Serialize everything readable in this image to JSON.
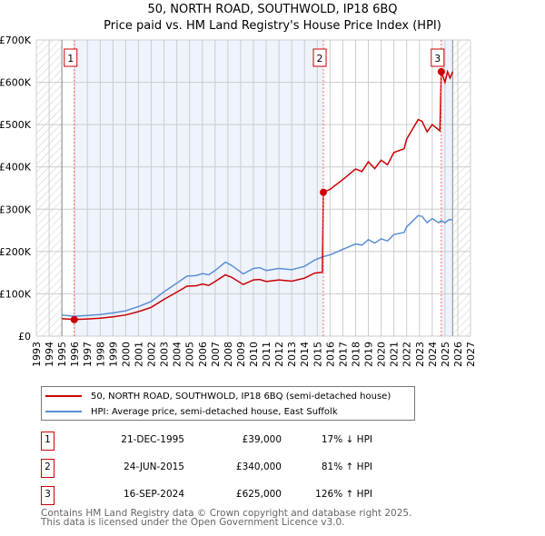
{
  "title": "50, NORTH ROAD, SOUTHWOLD, IP18 6BQ",
  "subtitle": "Price paid vs. HM Land Registry's House Price Index (HPI)",
  "chart_data": {
    "type": "line",
    "title": "50, NORTH ROAD, SOUTHWOLD, IP18 6BQ",
    "subtitle": "Price paid vs. HM Land Registry's House Price Index (HPI)",
    "xlim": [
      1993,
      2027
    ],
    "ylim": [
      0,
      700000
    ],
    "y_ticks": [
      0,
      100000,
      200000,
      300000,
      400000,
      500000,
      600000,
      700000
    ],
    "y_tick_labels": [
      "£0",
      "£100K",
      "£200K",
      "£300K",
      "£400K",
      "£500K",
      "£600K",
      "£700K"
    ],
    "x_ticks": [
      "1993",
      "1994",
      "1995",
      "1996",
      "1997",
      "1998",
      "1999",
      "2000",
      "2001",
      "2002",
      "2003",
      "2004",
      "2005",
      "2006",
      "2007",
      "2008",
      "2009",
      "2010",
      "2011",
      "2012",
      "2013",
      "2014",
      "2015",
      "2016",
      "2017",
      "2018",
      "2019",
      "2020",
      "2021",
      "2022",
      "2023",
      "2024",
      "2025",
      "2026",
      "2027"
    ],
    "data_range": [
      1995,
      2025.6
    ],
    "grid": true,
    "colors": {
      "property": "#cc0000",
      "hpi": "#5b8fd4",
      "shade": "#eef3fc"
    },
    "series": [
      {
        "name": "50, NORTH ROAD, SOUTHWOLD, IP18 6BQ (semi-detached house)",
        "color": "#cc0000",
        "points": [
          [
            1995,
            41500
          ],
          [
            1995.97,
            39000
          ],
          [
            1997,
            40500
          ],
          [
            1998,
            42500
          ],
          [
            1999,
            45500
          ],
          [
            2000,
            50000
          ],
          [
            2001,
            58000
          ],
          [
            2002,
            68000
          ],
          [
            2003,
            87000
          ],
          [
            2004,
            104000
          ],
          [
            2004.8,
            118000
          ],
          [
            2005.5,
            119000
          ],
          [
            2006,
            123000
          ],
          [
            2006.5,
            120000
          ],
          [
            2007,
            129000
          ],
          [
            2007.8,
            145000
          ],
          [
            2008.3,
            139000
          ],
          [
            2009.2,
            122000
          ],
          [
            2010,
            133000
          ],
          [
            2010.5,
            134000
          ],
          [
            2011,
            129000
          ],
          [
            2012,
            133000
          ],
          [
            2013,
            130000
          ],
          [
            2014,
            137000
          ],
          [
            2014.8,
            149000
          ],
          [
            2015.4,
            151000
          ],
          [
            2015.48,
            340000
          ],
          [
            2016,
            347000
          ],
          [
            2017,
            370000
          ],
          [
            2018,
            395000
          ],
          [
            2018.5,
            389000
          ],
          [
            2019,
            412000
          ],
          [
            2019.5,
            396000
          ],
          [
            2020,
            416000
          ],
          [
            2020.5,
            405000
          ],
          [
            2021,
            434000
          ],
          [
            2021.8,
            443000
          ],
          [
            2022,
            466000
          ],
          [
            2022.9,
            512000
          ],
          [
            2023.2,
            508000
          ],
          [
            2023.6,
            483000
          ],
          [
            2024,
            500000
          ],
          [
            2024.6,
            485000
          ],
          [
            2024.71,
            625000
          ],
          [
            2025,
            600000
          ],
          [
            2025.2,
            625000
          ],
          [
            2025.4,
            610000
          ],
          [
            2025.6,
            625000
          ]
        ]
      },
      {
        "name": "HPI: Average price, semi-detached house, East Suffolk",
        "color": "#5b8fd4",
        "points": [
          [
            1995,
            50000
          ],
          [
            1996,
            47000
          ],
          [
            1997,
            49000
          ],
          [
            1998,
            51000
          ],
          [
            1999,
            55000
          ],
          [
            2000,
            60000
          ],
          [
            2001,
            70000
          ],
          [
            2002,
            82000
          ],
          [
            2003,
            105000
          ],
          [
            2004,
            125000
          ],
          [
            2004.8,
            142000
          ],
          [
            2005.5,
            143000
          ],
          [
            2006,
            148000
          ],
          [
            2006.5,
            145000
          ],
          [
            2007,
            155000
          ],
          [
            2007.8,
            175000
          ],
          [
            2008.3,
            167000
          ],
          [
            2009.2,
            147000
          ],
          [
            2010,
            160000
          ],
          [
            2010.5,
            162000
          ],
          [
            2011,
            155000
          ],
          [
            2012,
            160000
          ],
          [
            2013,
            157000
          ],
          [
            2014,
            165000
          ],
          [
            2014.8,
            180000
          ],
          [
            2015.5,
            188000
          ],
          [
            2016,
            192000
          ],
          [
            2017,
            205000
          ],
          [
            2018,
            218000
          ],
          [
            2018.5,
            215000
          ],
          [
            2019,
            228000
          ],
          [
            2019.5,
            220000
          ],
          [
            2020,
            230000
          ],
          [
            2020.5,
            225000
          ],
          [
            2021,
            240000
          ],
          [
            2021.8,
            245000
          ],
          [
            2022,
            258000
          ],
          [
            2022.9,
            285000
          ],
          [
            2023.2,
            283000
          ],
          [
            2023.6,
            268000
          ],
          [
            2024,
            278000
          ],
          [
            2024.5,
            268000
          ],
          [
            2024.7,
            273000
          ],
          [
            2025,
            268000
          ],
          [
            2025.3,
            275000
          ],
          [
            2025.6,
            275000
          ]
        ]
      }
    ],
    "sales": [
      {
        "label": "1",
        "year": 1995.97,
        "price": 39000
      },
      {
        "label": "2",
        "year": 2015.48,
        "price": 340000
      },
      {
        "label": "3",
        "year": 2024.71,
        "price": 625000
      }
    ]
  },
  "legend": [
    {
      "label": "50, NORTH ROAD, SOUTHWOLD, IP18 6BQ (semi-detached house)",
      "color": "#cc0000"
    },
    {
      "label": "HPI: Average price, semi-detached house, East Suffolk",
      "color": "#5b8fd4"
    }
  ],
  "sales_table": [
    {
      "num": "1",
      "date": "21-DEC-1995",
      "price": "£39,000",
      "hpi": "17% ↓ HPI"
    },
    {
      "num": "2",
      "date": "24-JUN-2015",
      "price": "£340,000",
      "hpi": "81% ↑ HPI"
    },
    {
      "num": "3",
      "date": "16-SEP-2024",
      "price": "£625,000",
      "hpi": "126% ↑ HPI"
    }
  ],
  "footer": {
    "line1": "Contains HM Land Registry data © Crown copyright and database right 2025.",
    "line2": "This data is licensed under the Open Government Licence v3.0."
  }
}
